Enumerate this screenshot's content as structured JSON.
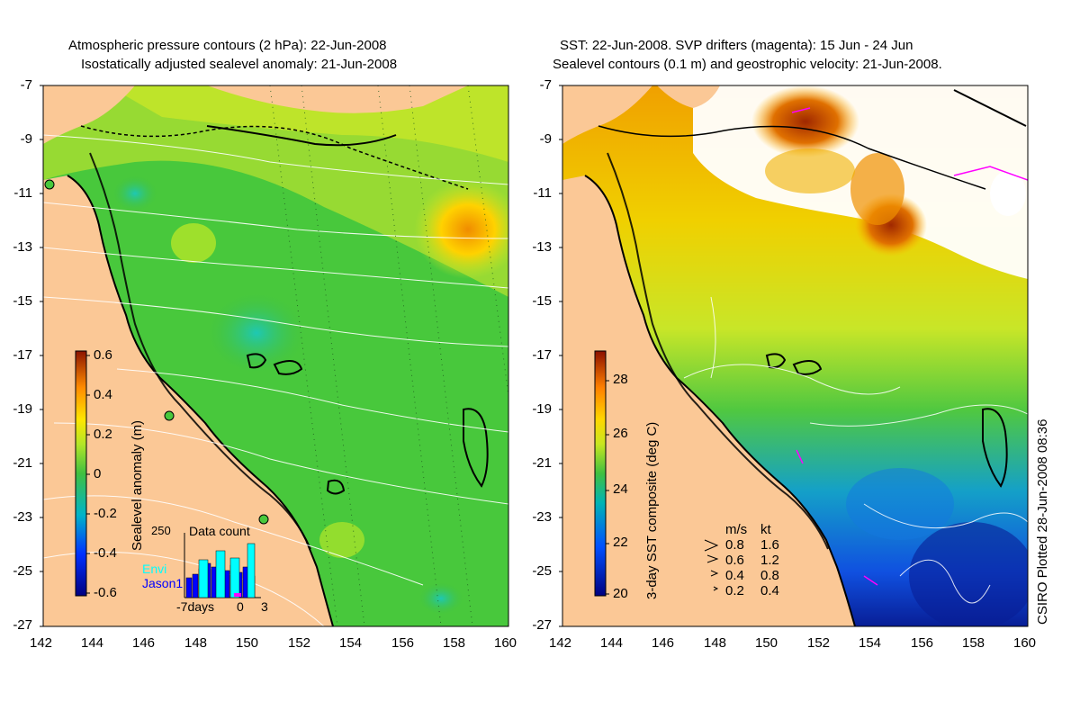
{
  "left_panel": {
    "title_line1": "Atmospheric pressure contours (2 hPa): 22-Jun-2008",
    "title_line2": "Isostatically adjusted sealevel anomaly: 21-Jun-2008",
    "colorbar_label": "Sealevel anomaly (m)",
    "colorbar_ticks": [
      "0.6",
      "0.4",
      "0.2",
      "0",
      "-0.2",
      "-0.4",
      "-0.6"
    ],
    "inset": {
      "max_label": "250",
      "title": "Data count",
      "legend_envi": "Envi",
      "legend_jason": "Jason1",
      "x_labels": [
        "-7days",
        "0",
        "3"
      ],
      "envi_color": "#00ffff",
      "jason_color": "#0000ff"
    }
  },
  "right_panel": {
    "title_line1": "SST: 22-Jun-2008. SVP drifters (magenta): 15 Jun - 24 Jun",
    "title_line2": "Sealevel contours (0.1 m) and geostrophic velocity: 21-Jun-2008.",
    "colorbar_label": "3-day SST composite (deg C)",
    "colorbar_ticks": [
      "28",
      "26",
      "24",
      "22",
      "20"
    ],
    "speed_legend": {
      "header_ms": "m/s",
      "header_kt": "kt",
      "rows": [
        {
          "ms": "0.8",
          "kt": "1.6"
        },
        {
          "ms": "0.6",
          "kt": "1.2"
        },
        {
          "ms": "0.4",
          "kt": "0.8"
        },
        {
          "ms": "0.2",
          "kt": "0.4"
        }
      ]
    }
  },
  "axes": {
    "y_ticks": [
      "-7",
      "-9",
      "-11",
      "-13",
      "-15",
      "-17",
      "-19",
      "-21",
      "-23",
      "-25",
      "-27"
    ],
    "x_ticks": [
      "142",
      "144",
      "146",
      "148",
      "150",
      "152",
      "154",
      "156",
      "158",
      "160"
    ]
  },
  "credit": "CSIRO Plotted 28-Jun-2008 08:36",
  "colors": {
    "land": "#fbc896",
    "ocean_green": "#48c83c",
    "drifter_magenta": "#ff00ff"
  }
}
